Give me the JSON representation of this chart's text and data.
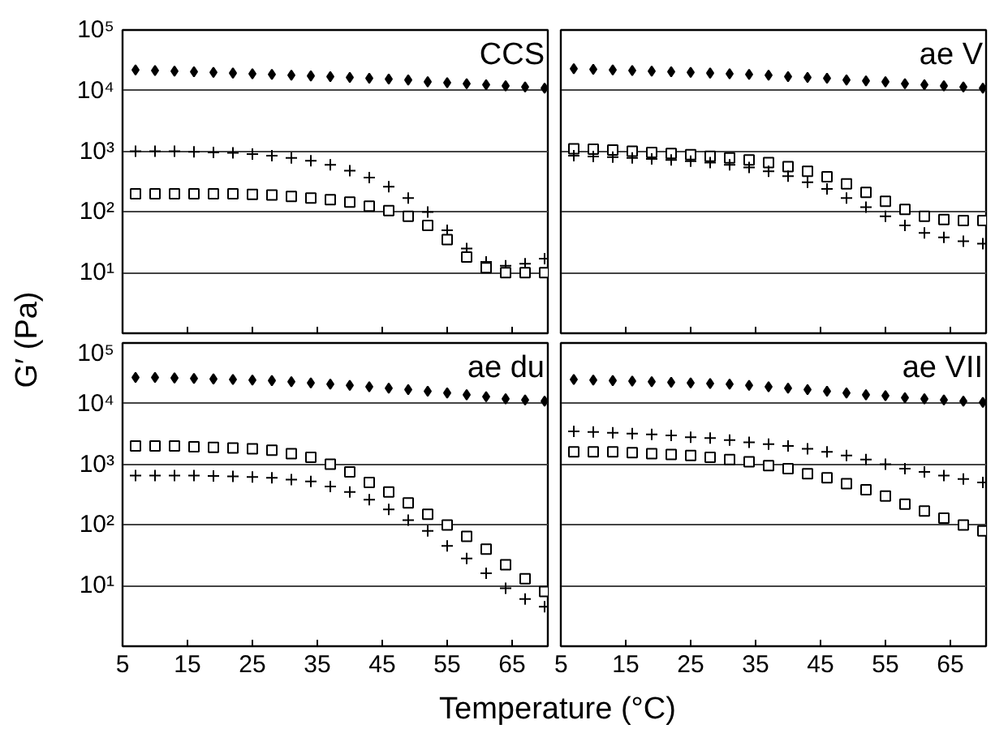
{
  "chart_data": [
    {
      "type": "scatter",
      "title": "CCS",
      "ylabel": "G′ (Pa)",
      "log": "y",
      "grid": "y",
      "tick_labels": "y",
      "xlim": [
        5,
        70.5
      ],
      "xticks": [
        5,
        15,
        25,
        35,
        45,
        55,
        65
      ],
      "ylim": [
        1,
        100000
      ],
      "yticks": [
        {
          "value": 10,
          "label": "10¹"
        },
        {
          "value": 100,
          "label": "10²"
        },
        {
          "value": 1000,
          "label": "10³"
        },
        {
          "value": 10000,
          "label": "10⁴"
        },
        {
          "value": 100000,
          "label": "10⁵"
        }
      ],
      "x": [
        7,
        10,
        13,
        16,
        19,
        22,
        25,
        28,
        31,
        34,
        37,
        40,
        43,
        46,
        49,
        52,
        55,
        58,
        61,
        64,
        67,
        70
      ],
      "series": [
        {
          "color": "#000000",
          "marker": "diamond",
          "values": [
            22000,
            21500,
            21000,
            20500,
            20000,
            19500,
            19000,
            18500,
            18000,
            17500,
            17000,
            16500,
            16000,
            15500,
            15000,
            14000,
            13500,
            13000,
            12500,
            12000,
            11500,
            11000
          ]
        },
        {
          "color": "#000000",
          "marker": "cross",
          "values": [
            1000,
            1000,
            1000,
            980,
            960,
            940,
            900,
            850,
            780,
            700,
            600,
            480,
            370,
            260,
            170,
            100,
            50,
            25,
            15,
            13,
            14,
            17
          ]
        },
        {
          "color": "#000000",
          "marker": "square",
          "values": [
            200,
            200,
            200,
            200,
            200,
            200,
            195,
            190,
            180,
            170,
            160,
            145,
            125,
            105,
            85,
            60,
            35,
            18,
            12,
            10,
            10,
            10
          ]
        }
      ]
    },
    {
      "type": "scatter",
      "title": "ae V",
      "log": "y",
      "grid": "y",
      "tick_labels": false,
      "xlim": [
        5,
        70.5
      ],
      "xticks": [
        5,
        15,
        25,
        35,
        45,
        55,
        65
      ],
      "ylim": [
        1,
        100000
      ],
      "yticks": [
        10,
        100,
        1000,
        10000,
        100000
      ],
      "x": [
        7,
        10,
        13,
        16,
        19,
        22,
        25,
        28,
        31,
        34,
        37,
        40,
        43,
        46,
        49,
        52,
        55,
        58,
        61,
        64,
        67,
        70
      ],
      "series": [
        {
          "color": "#000000",
          "marker": "diamond",
          "values": [
            23000,
            22500,
            22000,
            21500,
            21000,
            20500,
            20000,
            19500,
            19000,
            18500,
            18000,
            17000,
            16500,
            16000,
            15000,
            14500,
            14000,
            13000,
            12500,
            12000,
            11500,
            11000
          ]
        },
        {
          "color": "#000000",
          "marker": "square",
          "values": [
            1100,
            1080,
            1050,
            1000,
            960,
            920,
            880,
            830,
            780,
            720,
            650,
            560,
            470,
            380,
            290,
            210,
            150,
            110,
            85,
            75,
            72,
            72
          ]
        },
        {
          "color": "#000000",
          "marker": "cross",
          "values": [
            850,
            820,
            800,
            780,
            750,
            720,
            690,
            650,
            600,
            540,
            470,
            390,
            310,
            240,
            170,
            120,
            85,
            60,
            45,
            38,
            33,
            30
          ]
        }
      ]
    },
    {
      "type": "scatter",
      "title": "ae du",
      "xlabel": "Temperature (°C)",
      "log": "y",
      "grid": "y",
      "xlim": [
        5,
        70.5
      ],
      "xticks": [
        5,
        15,
        25,
        35,
        45,
        55,
        65
      ],
      "ylim": [
        1,
        100000
      ],
      "yticks": [
        {
          "value": 10,
          "label": "10¹"
        },
        {
          "value": 100,
          "label": "10²"
        },
        {
          "value": 1000,
          "label": "10³"
        },
        {
          "value": 10000,
          "label": "10⁴"
        },
        {
          "value": 100000,
          "label": "10⁵"
        }
      ],
      "x": [
        7,
        10,
        13,
        16,
        19,
        22,
        25,
        28,
        31,
        34,
        37,
        40,
        43,
        46,
        49,
        52,
        55,
        58,
        61,
        64,
        67,
        70
      ],
      "series": [
        {
          "color": "#000000",
          "marker": "diamond",
          "values": [
            27000,
            27000,
            26500,
            26000,
            25500,
            25000,
            24500,
            24000,
            23000,
            22000,
            21000,
            20000,
            19000,
            18000,
            17000,
            16000,
            15000,
            14000,
            13000,
            12000,
            11500,
            11000
          ]
        },
        {
          "color": "#000000",
          "marker": "square",
          "values": [
            2000,
            2000,
            2000,
            1950,
            1900,
            1850,
            1800,
            1700,
            1500,
            1300,
            1000,
            750,
            500,
            350,
            230,
            150,
            100,
            65,
            40,
            22,
            13,
            8
          ]
        },
        {
          "color": "#000000",
          "marker": "cross",
          "values": [
            650,
            650,
            650,
            650,
            640,
            630,
            620,
            600,
            560,
            520,
            430,
            350,
            260,
            180,
            120,
            80,
            45,
            28,
            16,
            9,
            6,
            4.5
          ]
        }
      ]
    },
    {
      "type": "scatter",
      "title": "ae VII",
      "log": "y",
      "grid": "y",
      "tick_labels": "x",
      "xlim": [
        5,
        70.5
      ],
      "xticks": [
        5,
        15,
        25,
        35,
        45,
        55,
        65
      ],
      "ylim": [
        1,
        100000
      ],
      "yticks": [
        10,
        100,
        1000,
        10000,
        100000
      ],
      "x": [
        7,
        10,
        13,
        16,
        19,
        22,
        25,
        28,
        31,
        34,
        37,
        40,
        43,
        46,
        49,
        52,
        55,
        58,
        61,
        64,
        67,
        70
      ],
      "series": [
        {
          "color": "#000000",
          "marker": "diamond",
          "values": [
            25000,
            24500,
            24000,
            23500,
            23000,
            22500,
            22000,
            21500,
            21000,
            20000,
            19000,
            18000,
            17000,
            16000,
            15000,
            14000,
            13500,
            12500,
            12000,
            11500,
            11000,
            10500
          ]
        },
        {
          "color": "#000000",
          "marker": "cross",
          "values": [
            3500,
            3400,
            3300,
            3200,
            3100,
            3000,
            2800,
            2700,
            2500,
            2300,
            2150,
            2000,
            1800,
            1600,
            1400,
            1200,
            1000,
            850,
            750,
            650,
            570,
            500
          ]
        },
        {
          "color": "#000000",
          "marker": "square",
          "values": [
            1600,
            1600,
            1600,
            1550,
            1500,
            1450,
            1400,
            1300,
            1200,
            1100,
            950,
            850,
            700,
            600,
            480,
            380,
            300,
            220,
            170,
            130,
            100,
            80
          ]
        }
      ]
    }
  ]
}
